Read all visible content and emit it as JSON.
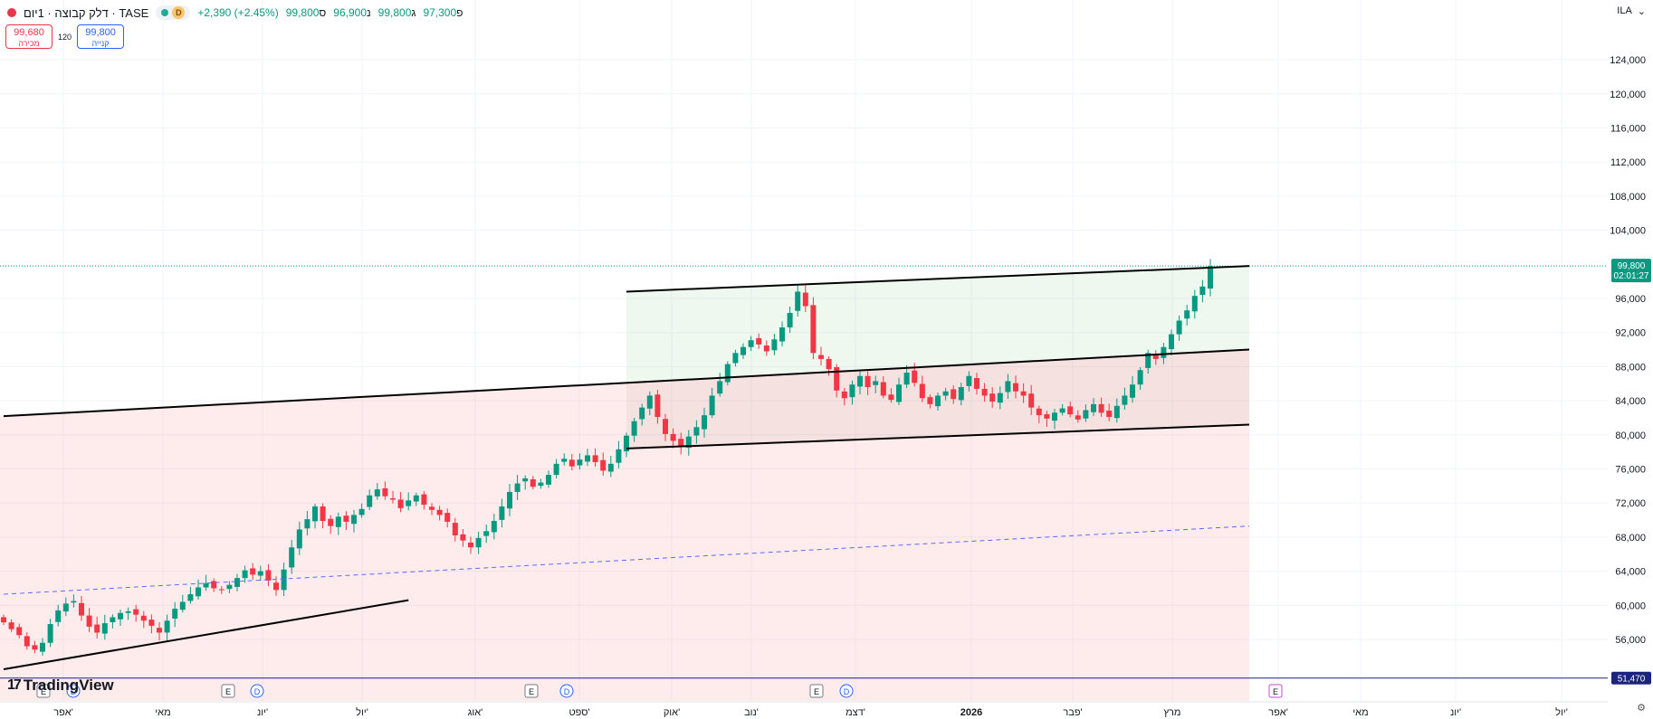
{
  "header": {
    "symbol_title": "דלק קבוצה · 1יום · TASE",
    "change": "+2,390 (+2.45%)",
    "close_label": "ס",
    "close_value": "99,800",
    "low_label": "נ",
    "low_value": "96,900",
    "high_label": "ג",
    "high_value": "99,800",
    "open_label": "פ",
    "open_value": "97,300",
    "badge_d": "D"
  },
  "trade": {
    "sell_value": "99,680",
    "sell_label": "מכירה",
    "spread": "120",
    "buy_value": "99,800",
    "buy_label": "קנייה"
  },
  "currency": "ILA",
  "logo_text": "TradingView",
  "colors": {
    "up": "#089981",
    "down": "#f23645",
    "accent": "#2962ff",
    "last_price_bg": "#089981",
    "level_bg": "#1a237e"
  },
  "price_axis": {
    "ticks": [
      "124,000",
      "120,000",
      "116,000",
      "112,000",
      "108,000",
      "104,000",
      "96,000",
      "92,000",
      "88,000",
      "84,000",
      "80,000",
      "76,000",
      "72,000",
      "68,000",
      "64,000",
      "60,000",
      "56,000"
    ],
    "last_price": "99,800",
    "countdown": "02:01:27",
    "level_label": "51,470"
  },
  "time_axis": [
    "אפר'",
    "מאי",
    "יונ'",
    "יול'",
    "אוג'",
    "ספט'",
    "אוק'",
    "נוב'",
    "דצמ'",
    "2026",
    "פבר'",
    "מרץ",
    "אפר'",
    "מאי",
    "יונ'",
    "יול'"
  ],
  "events": [
    {
      "type": "E"
    },
    {
      "type": "D"
    },
    {
      "type": "E"
    },
    {
      "type": "D"
    },
    {
      "type": "E"
    },
    {
      "type": "D"
    },
    {
      "type": "E"
    },
    {
      "type": "D"
    },
    {
      "type": "E"
    }
  ],
  "chart_data": {
    "type": "candlestick",
    "series_close": [
      58000,
      57200,
      56500,
      55200,
      54800,
      55600,
      57800,
      59400,
      60200,
      60500,
      58800,
      57500,
      56800,
      57900,
      58600,
      59100,
      59300,
      58900,
      58200,
      57600,
      56800,
      58200,
      59600,
      60400,
      61300,
      62100,
      62600,
      62000,
      61800,
      62400,
      63200,
      64100,
      63600,
      64000,
      62900,
      61800,
      64200,
      66800,
      68900,
      70100,
      71600,
      69900,
      69300,
      70400,
      69800,
      70600,
      71300,
      72900,
      73600,
      72800,
      72400,
      71400,
      72300,
      72900,
      71800,
      71200,
      70600,
      69800,
      68200,
      67600,
      66800,
      67900,
      68700,
      69900,
      71600,
      73300,
      74300,
      74900,
      73900,
      74400,
      75300,
      76600,
      77200,
      76300,
      77100,
      77600,
      76800,
      75800,
      76600,
      78300,
      79900,
      81600,
      83200,
      84600,
      82100,
      80100,
      79300,
      78600,
      79800,
      80900,
      82300,
      84600,
      86300,
      88300,
      89600,
      90300,
      91100,
      90600,
      89800,
      91200,
      92600,
      94300,
      96800,
      95100,
      89600,
      88900,
      87700,
      85200,
      84300,
      85900,
      86900,
      85600,
      86300,
      84600,
      84100,
      85900,
      87300,
      86100,
      84300,
      83600,
      84600,
      85100,
      84200,
      85600,
      86900,
      85400,
      84600,
      83900,
      84900,
      86300,
      85100,
      84600,
      83200,
      82300,
      81900,
      82600,
      83100,
      82400,
      81800,
      82900,
      83600,
      82600,
      82100,
      83400,
      84600,
      85900,
      87600,
      89600,
      88900,
      90300,
      91800,
      93400,
      94600,
      96300,
      97400,
      99800
    ],
    "trendlines": [
      {
        "from": [
          0,
          82200
        ],
        "to": [
          160,
          90000
        ]
      },
      {
        "from": [
          80,
          78400
        ],
        "to": [
          160,
          81200
        ]
      },
      {
        "from": [
          80,
          96800
        ],
        "to": [
          160,
          99800
        ]
      },
      {
        "from": [
          0,
          52500
        ],
        "to": [
          52,
          60600
        ]
      },
      {
        "from": [
          0,
          61300
        ],
        "to": [
          160,
          69300
        ],
        "style": "dashed"
      }
    ],
    "ylim": [
      50000,
      126000
    ]
  }
}
